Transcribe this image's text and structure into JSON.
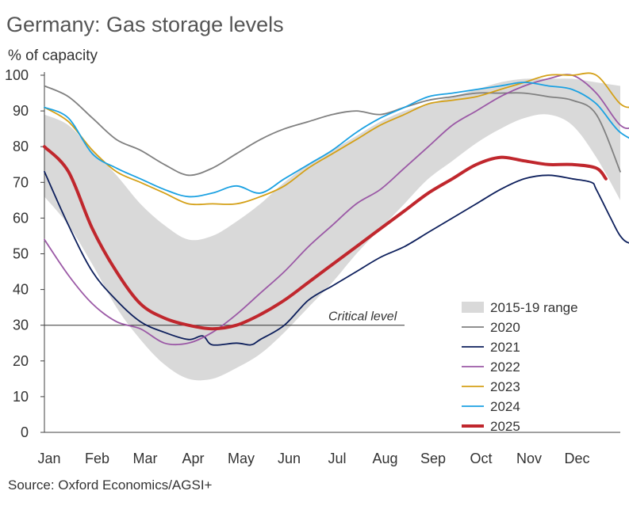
{
  "title": "Germany: Gas storage levels",
  "ylabel": "% of capacity",
  "source": "Source: Oxford Economics/AGSI+",
  "chart_data": {
    "type": "line",
    "title": "Germany: Gas storage levels",
    "ylabel": "% of capacity",
    "xlabel": "",
    "ylim": [
      0,
      100
    ],
    "yticks": [
      0,
      10,
      20,
      30,
      40,
      50,
      60,
      70,
      80,
      90,
      100
    ],
    "months": [
      "Jan",
      "Feb",
      "Mar",
      "Apr",
      "May",
      "Jun",
      "Jul",
      "Aug",
      "Sep",
      "Oct",
      "Nov",
      "Dec"
    ],
    "x_unit": "month (0 = 1 Jan, 12 = 31 Dec)",
    "grid": false,
    "legend_position": "bottom-right",
    "annotation": {
      "text": "Critical level",
      "y": 30
    },
    "range": {
      "name": "2015-19 range",
      "color": "#d9d9d9",
      "upper": [
        [
          0,
          89
        ],
        [
          0.5,
          86
        ],
        [
          1,
          79
        ],
        [
          1.5,
          72
        ],
        [
          2,
          64
        ],
        [
          2.5,
          58
        ],
        [
          3,
          54
        ],
        [
          3.5,
          55
        ],
        [
          4,
          59
        ],
        [
          4.5,
          64
        ],
        [
          5,
          70
        ],
        [
          5.5,
          75
        ],
        [
          6,
          79
        ],
        [
          6.5,
          83
        ],
        [
          7,
          87
        ],
        [
          7.5,
          90
        ],
        [
          8,
          92
        ],
        [
          8.5,
          94
        ],
        [
          9,
          96
        ],
        [
          9.5,
          98
        ],
        [
          10,
          99
        ],
        [
          10.5,
          99
        ],
        [
          11,
          99
        ],
        [
          11.5,
          98
        ],
        [
          12,
          97
        ]
      ],
      "lower": [
        [
          0,
          66
        ],
        [
          0.5,
          58
        ],
        [
          1,
          47
        ],
        [
          1.5,
          35
        ],
        [
          2,
          26
        ],
        [
          2.5,
          19
        ],
        [
          3,
          15
        ],
        [
          3.5,
          15
        ],
        [
          4,
          18
        ],
        [
          4.5,
          22
        ],
        [
          5,
          28
        ],
        [
          5.5,
          35
        ],
        [
          6,
          42
        ],
        [
          6.5,
          50
        ],
        [
          7,
          57
        ],
        [
          7.5,
          64
        ],
        [
          8,
          71
        ],
        [
          8.5,
          76
        ],
        [
          9,
          81
        ],
        [
          9.5,
          85
        ],
        [
          10,
          88
        ],
        [
          10.5,
          89
        ],
        [
          11,
          86
        ],
        [
          11.5,
          77
        ],
        [
          12,
          65
        ]
      ]
    },
    "series": [
      {
        "name": "2020",
        "color": "#808080",
        "width": 1.8,
        "points": [
          [
            0,
            97
          ],
          [
            0.5,
            94
          ],
          [
            1,
            88
          ],
          [
            1.5,
            82
          ],
          [
            2,
            79
          ],
          [
            2.5,
            75
          ],
          [
            3,
            72
          ],
          [
            3.5,
            74
          ],
          [
            4,
            78
          ],
          [
            4.5,
            82
          ],
          [
            5,
            85
          ],
          [
            5.5,
            87
          ],
          [
            6,
            89
          ],
          [
            6.5,
            90
          ],
          [
            7,
            89
          ],
          [
            7.5,
            91
          ],
          [
            8,
            93
          ],
          [
            8.5,
            94
          ],
          [
            9,
            95
          ],
          [
            9.5,
            95
          ],
          [
            10,
            95
          ],
          [
            10.5,
            94
          ],
          [
            11,
            93
          ],
          [
            11.5,
            89
          ],
          [
            12,
            73
          ]
        ]
      },
      {
        "name": "2021",
        "color": "#0d1f5c",
        "width": 1.8,
        "points": [
          [
            0,
            73
          ],
          [
            0.5,
            58
          ],
          [
            1,
            45
          ],
          [
            1.5,
            37
          ],
          [
            2,
            31
          ],
          [
            2.5,
            28
          ],
          [
            3,
            26
          ],
          [
            3.3,
            27
          ],
          [
            3.5,
            24.5
          ],
          [
            4,
            25
          ],
          [
            4.3,
            24.5
          ],
          [
            4.5,
            26
          ],
          [
            5,
            30
          ],
          [
            5.5,
            37
          ],
          [
            6,
            41
          ],
          [
            6.5,
            45
          ],
          [
            7,
            49
          ],
          [
            7.5,
            52
          ],
          [
            8,
            56
          ],
          [
            8.5,
            60
          ],
          [
            9,
            64
          ],
          [
            9.5,
            68
          ],
          [
            10,
            71
          ],
          [
            10.5,
            72
          ],
          [
            11,
            71
          ],
          [
            11.4,
            70
          ],
          [
            11.5,
            68
          ],
          [
            11.8,
            60
          ],
          [
            12,
            55
          ],
          [
            12.2,
            53
          ],
          [
            12.5,
            54
          ]
        ]
      },
      {
        "name": "2022",
        "color": "#9b59a6",
        "width": 1.8,
        "points": [
          [
            0,
            54
          ],
          [
            0.5,
            44
          ],
          [
            1,
            36
          ],
          [
            1.5,
            31
          ],
          [
            2,
            29
          ],
          [
            2.5,
            25
          ],
          [
            3,
            25
          ],
          [
            3.5,
            28
          ],
          [
            4,
            33
          ],
          [
            4.5,
            39
          ],
          [
            5,
            45
          ],
          [
            5.5,
            52
          ],
          [
            6,
            58
          ],
          [
            6.5,
            64
          ],
          [
            7,
            68
          ],
          [
            7.5,
            74
          ],
          [
            8,
            80
          ],
          [
            8.5,
            86
          ],
          [
            9,
            90
          ],
          [
            9.5,
            94
          ],
          [
            10,
            97
          ],
          [
            10.5,
            99
          ],
          [
            11,
            100
          ],
          [
            11.5,
            95
          ],
          [
            12,
            86
          ],
          [
            12.3,
            86
          ],
          [
            12.6,
            91
          ]
        ]
      },
      {
        "name": "2023",
        "color": "#d4a017",
        "width": 1.8,
        "points": [
          [
            0,
            91
          ],
          [
            0.5,
            87
          ],
          [
            1,
            79
          ],
          [
            1.5,
            73
          ],
          [
            2,
            70
          ],
          [
            2.5,
            67
          ],
          [
            3,
            64
          ],
          [
            3.5,
            64
          ],
          [
            4,
            64
          ],
          [
            4.5,
            66
          ],
          [
            5,
            69
          ],
          [
            5.5,
            74
          ],
          [
            6,
            78
          ],
          [
            6.5,
            82
          ],
          [
            7,
            86
          ],
          [
            7.5,
            89
          ],
          [
            8,
            92
          ],
          [
            8.5,
            93
          ],
          [
            9,
            94
          ],
          [
            9.5,
            96
          ],
          [
            10,
            98
          ],
          [
            10.5,
            100
          ],
          [
            11,
            100
          ],
          [
            11.5,
            100
          ],
          [
            12,
            92
          ],
          [
            12.3,
            91
          ],
          [
            12.6,
            91
          ]
        ]
      },
      {
        "name": "2024",
        "color": "#1ba1e2",
        "width": 1.8,
        "points": [
          [
            0,
            91
          ],
          [
            0.5,
            88
          ],
          [
            1,
            78
          ],
          [
            1.5,
            74
          ],
          [
            2,
            71
          ],
          [
            2.5,
            68
          ],
          [
            3,
            66
          ],
          [
            3.5,
            67
          ],
          [
            4,
            69
          ],
          [
            4.5,
            67
          ],
          [
            5,
            71
          ],
          [
            5.5,
            75
          ],
          [
            6,
            79
          ],
          [
            6.5,
            84
          ],
          [
            7,
            88
          ],
          [
            7.5,
            91
          ],
          [
            8,
            94
          ],
          [
            8.5,
            95
          ],
          [
            9,
            96
          ],
          [
            9.5,
            97
          ],
          [
            10,
            98
          ],
          [
            10.5,
            97
          ],
          [
            11,
            96
          ],
          [
            11.5,
            92
          ],
          [
            12,
            84
          ],
          [
            12.6,
            80
          ]
        ]
      },
      {
        "name": "2025",
        "color": "#c0272d",
        "width": 4,
        "points": [
          [
            0,
            80
          ],
          [
            0.5,
            73
          ],
          [
            1,
            57
          ],
          [
            1.5,
            45
          ],
          [
            2,
            36
          ],
          [
            2.5,
            32
          ],
          [
            3,
            30
          ],
          [
            3.5,
            29
          ],
          [
            4,
            30
          ],
          [
            4.5,
            33
          ],
          [
            5,
            37
          ],
          [
            5.5,
            42
          ],
          [
            6,
            47
          ],
          [
            6.5,
            52
          ],
          [
            7,
            57
          ],
          [
            7.5,
            62
          ],
          [
            8,
            67
          ],
          [
            8.5,
            71
          ],
          [
            9,
            75
          ],
          [
            9.5,
            77
          ],
          [
            10,
            76
          ],
          [
            10.5,
            75
          ],
          [
            11,
            75
          ],
          [
            11.5,
            74
          ],
          [
            11.7,
            71
          ]
        ]
      }
    ]
  }
}
